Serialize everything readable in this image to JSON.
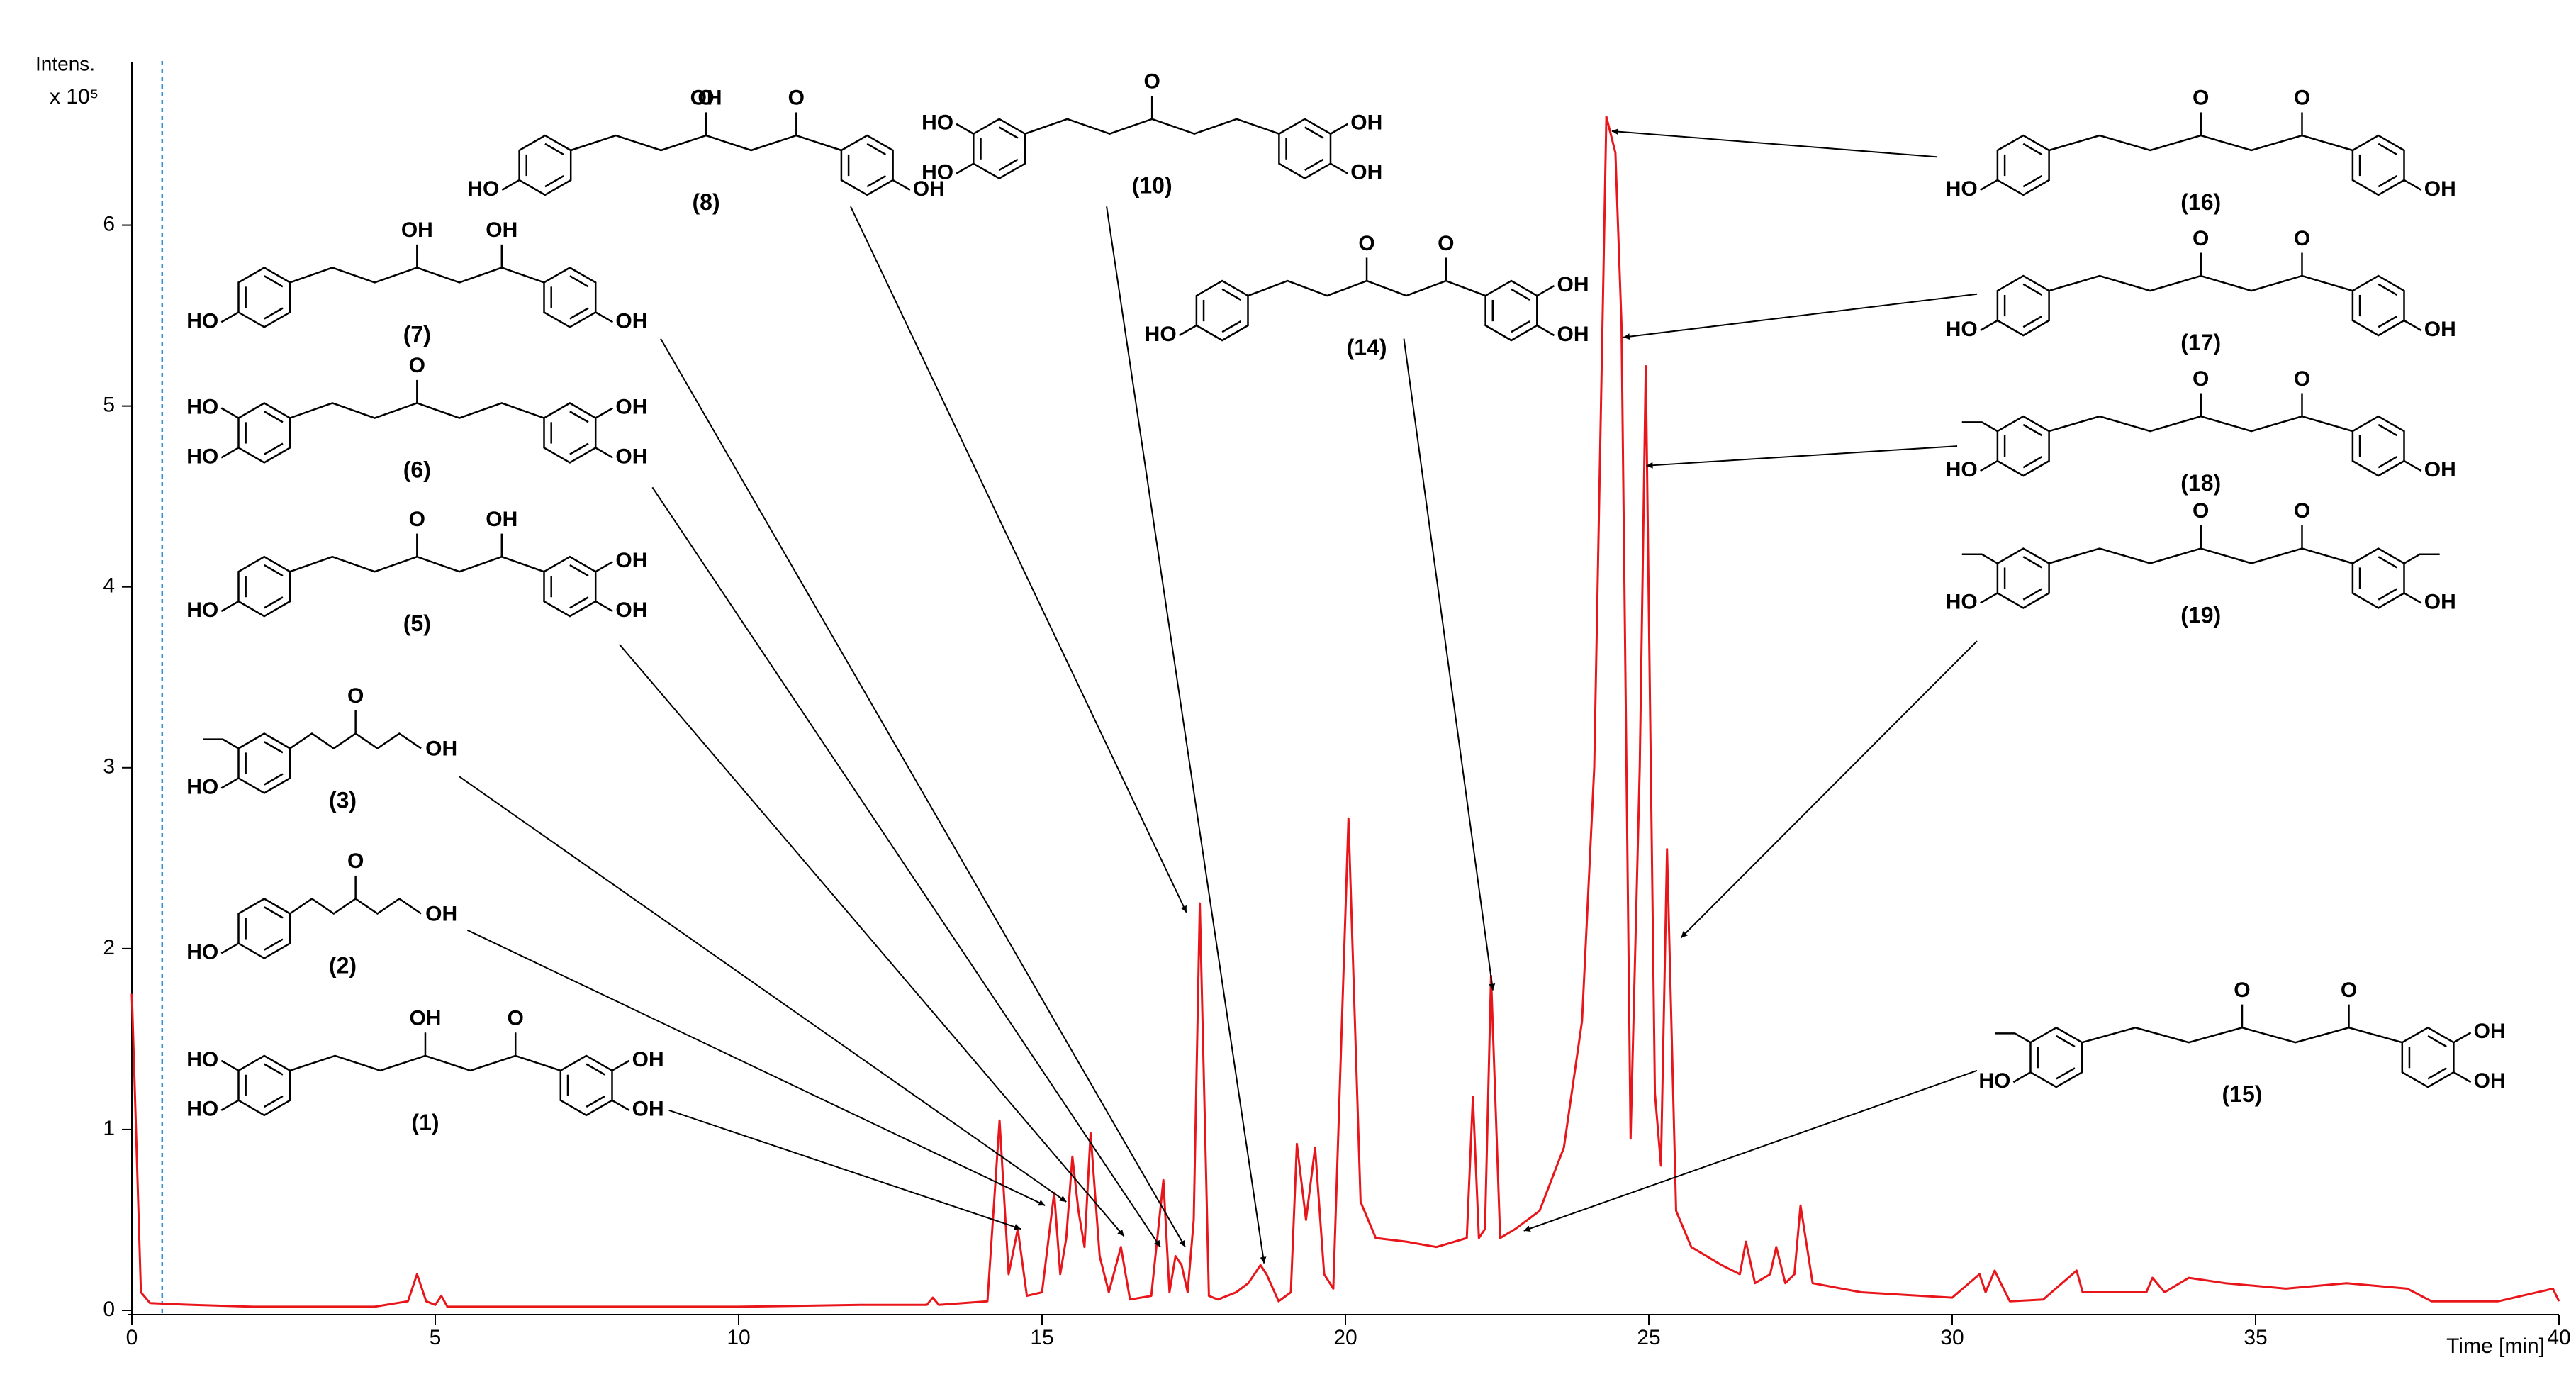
{
  "chart_data": {
    "type": "line",
    "y_label": "Intens.",
    "y_unit": "x 10⁵",
    "x_label": "Time [min]",
    "color": "#e8161b",
    "vline": 0.5,
    "xlim": [
      0,
      40
    ],
    "ylim": [
      0,
      6.9
    ],
    "xticks": [
      0,
      5,
      10,
      15,
      20,
      25,
      30,
      35,
      40
    ],
    "yticks": [
      0,
      1,
      2,
      3,
      4,
      5,
      6
    ],
    "x": [
      0,
      0.05,
      0.15,
      0.3,
      1,
      2,
      3,
      4,
      4.55,
      4.7,
      4.85,
      5.0,
      5.1,
      5.2,
      6,
      8,
      10,
      12,
      13.1,
      13.2,
      13.3,
      14.1,
      14.3,
      14.45,
      14.6,
      14.75,
      15.0,
      15.2,
      15.3,
      15.4,
      15.5,
      15.6,
      15.7,
      15.8,
      15.95,
      16.1,
      16.3,
      16.45,
      16.8,
      17.0,
      17.1,
      17.2,
      17.3,
      17.4,
      17.5,
      17.6,
      17.75,
      17.9,
      18.2,
      18.4,
      18.6,
      18.7,
      18.9,
      19.1,
      19.2,
      19.35,
      19.5,
      19.65,
      19.8,
      20.05,
      20.25,
      20.5,
      21,
      21.5,
      22.0,
      22.1,
      22.2,
      22.3,
      22.4,
      22.55,
      22.8,
      23.2,
      23.6,
      23.9,
      24.1,
      24.3,
      24.45,
      24.55,
      24.7,
      24.85,
      24.95,
      25.1,
      25.2,
      25.3,
      25.45,
      25.7,
      26.2,
      26.5,
      26.6,
      26.75,
      27.0,
      27.1,
      27.25,
      27.4,
      27.5,
      27.7,
      28.5,
      30,
      30.45,
      30.55,
      30.7,
      30.8,
      30.95,
      31.5,
      32.05,
      32.15,
      32.3,
      33.2,
      33.3,
      33.5,
      33.9,
      34.5,
      35.5,
      36.5,
      37.5,
      37.9,
      38.2,
      39,
      39.9,
      40
    ],
    "values": [
      1.75,
      1.2,
      0.1,
      0.04,
      0.03,
      0.02,
      0.02,
      0.02,
      0.05,
      0.2,
      0.05,
      0.03,
      0.08,
      0.02,
      0.02,
      0.02,
      0.02,
      0.03,
      0.03,
      0.07,
      0.03,
      0.05,
      1.05,
      0.2,
      0.45,
      0.08,
      0.1,
      0.65,
      0.2,
      0.4,
      0.85,
      0.55,
      0.35,
      0.98,
      0.3,
      0.1,
      0.35,
      0.06,
      0.08,
      0.72,
      0.1,
      0.3,
      0.25,
      0.1,
      0.5,
      2.25,
      0.08,
      0.06,
      0.1,
      0.15,
      0.25,
      0.2,
      0.05,
      0.1,
      0.92,
      0.5,
      0.9,
      0.2,
      0.12,
      2.72,
      0.6,
      0.4,
      0.38,
      0.35,
      0.4,
      1.18,
      0.4,
      0.45,
      1.85,
      0.4,
      0.45,
      0.55,
      0.9,
      1.6,
      3.0,
      6.6,
      6.4,
      5.45,
      0.95,
      3.0,
      5.22,
      1.2,
      0.8,
      2.55,
      0.55,
      0.35,
      0.25,
      0.2,
      0.38,
      0.15,
      0.2,
      0.35,
      0.15,
      0.2,
      0.58,
      0.15,
      0.1,
      0.07,
      0.2,
      0.1,
      0.22,
      0.15,
      0.05,
      0.06,
      0.22,
      0.1,
      0.1,
      0.1,
      0.18,
      0.1,
      0.18,
      0.15,
      0.12,
      0.15,
      0.12,
      0.05,
      0.05,
      0.05,
      0.12,
      0.05
    ],
    "compounds": [
      {
        "label": "(1)",
        "left": [
          "HO",
          "HO"
        ],
        "chain": [
          "OH",
          "O"
        ],
        "right": [
          "OH",
          "OH"
        ],
        "target_x": 14.65,
        "target_y": 0.45
      },
      {
        "label": "(2)",
        "left": [
          "HO"
        ],
        "chain": [
          "O",
          "OH"
        ],
        "target_x": 15.05,
        "target_y": 0.58
      },
      {
        "label": "(3)",
        "left": [
          "HO"
        ],
        "methoxy_left": true,
        "chain": [
          "O",
          "OH"
        ],
        "target_x": 15.4,
        "target_y": 0.6
      },
      {
        "label": "(5)",
        "left": [
          "HO"
        ],
        "chain": [
          "O",
          "OH"
        ],
        "right": [
          "OH",
          "OH"
        ],
        "target_x": 16.35,
        "target_y": 0.41
      },
      {
        "label": "(6)",
        "left": [
          "HO",
          "HO"
        ],
        "chain": [
          "O"
        ],
        "right": [
          "OH",
          "OH"
        ],
        "target_x": 16.95,
        "target_y": 0.35
      },
      {
        "label": "(7)",
        "left": [
          "HO"
        ],
        "chain": [
          "OH",
          "OH"
        ],
        "right": [
          "OH"
        ],
        "target_x": 17.36,
        "target_y": 0.35
      },
      {
        "label": "(8)",
        "left": [
          "HO"
        ],
        "chain": [
          "O",
          "OH",
          "O"
        ],
        "right": [
          "OH"
        ],
        "target_x": 17.38,
        "target_y": 2.2
      },
      {
        "label": "(10)",
        "left": [
          "HO",
          "HO"
        ],
        "chain": [
          "O"
        ],
        "right": [
          "OH",
          "OH"
        ],
        "target_x": 18.66,
        "target_y": 0.26
      },
      {
        "label": "(14)",
        "left": [
          "HO"
        ],
        "chain": [
          "O",
          "O"
        ],
        "right": [
          "OH",
          "OH"
        ],
        "target_x": 22.43,
        "target_y": 1.77
      },
      {
        "label": "(16)",
        "left": [
          "HO"
        ],
        "chain": [
          "O",
          "O"
        ],
        "right": [
          "OH"
        ],
        "target_x": 24.39,
        "target_y": 6.52
      },
      {
        "label": "(17)",
        "left": [
          "HO"
        ],
        "chain": [
          "O",
          "O"
        ],
        "right": [
          "OH"
        ],
        "target_x": 24.58,
        "target_y": 5.38
      },
      {
        "label": "(18)",
        "left": [
          "HO"
        ],
        "methoxy_left": true,
        "chain": [
          "O",
          "O"
        ],
        "right": [
          "OH"
        ],
        "target_x": 24.96,
        "target_y": 4.67
      },
      {
        "label": "(19)",
        "left": [
          "HO"
        ],
        "methoxy_left": true,
        "chain": [
          "O",
          "O"
        ],
        "right": [
          "OH"
        ],
        "methoxy_right": true,
        "target_x": 25.53,
        "target_y": 2.06
      },
      {
        "label": "(15)",
        "left": [
          "HO"
        ],
        "methoxy_left": true,
        "chain": [
          "O",
          "O"
        ],
        "right": [
          "OH",
          "OH"
        ],
        "target_x": 22.94,
        "target_y": 0.44
      }
    ]
  }
}
